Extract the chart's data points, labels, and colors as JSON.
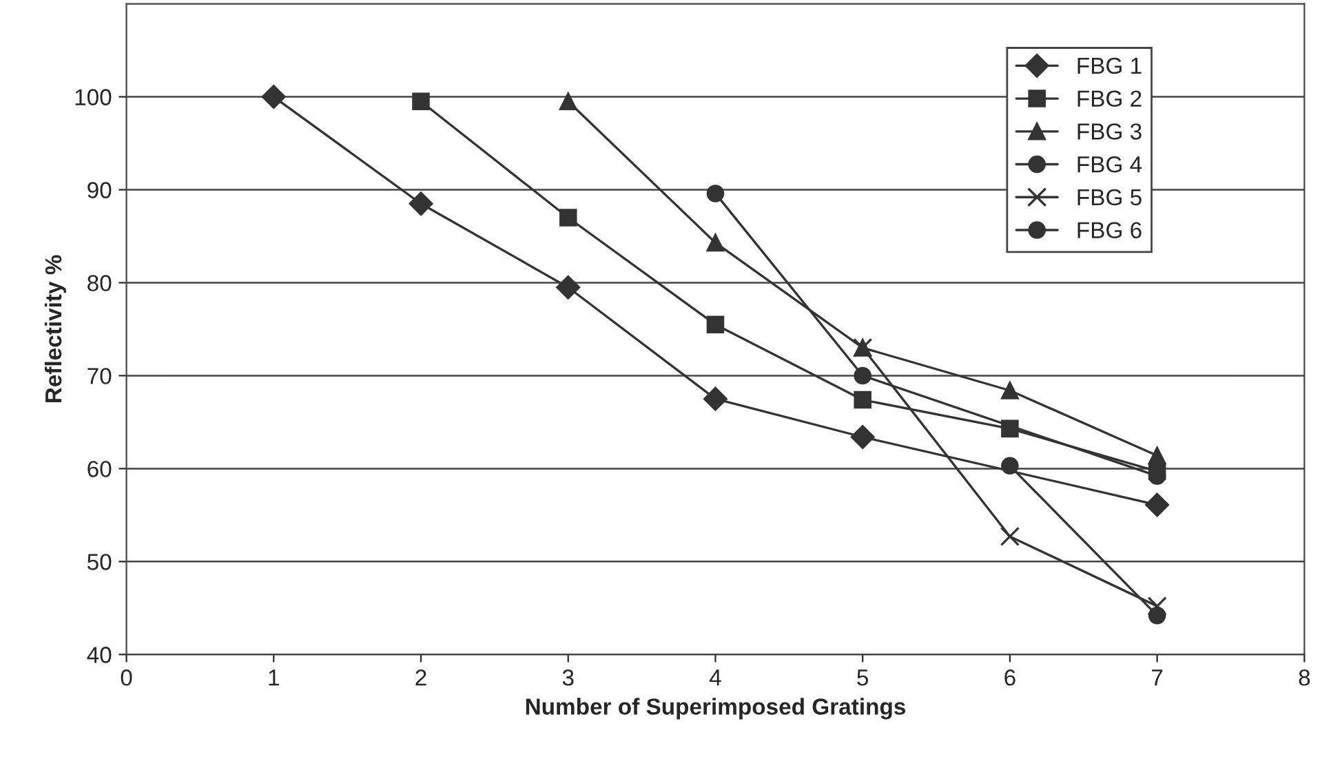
{
  "chart_data": {
    "type": "line",
    "xlabel": "Number of Superimposed Gratings",
    "ylabel": "Reflectivity %",
    "xlim": [
      0,
      8
    ],
    "xticks": [
      0,
      1,
      2,
      3,
      4,
      5,
      6,
      7,
      8
    ],
    "ylim": [
      40,
      110
    ],
    "yticks": [
      40,
      50,
      60,
      70,
      80,
      90,
      100
    ],
    "grid": "y",
    "legend": "top right",
    "line_style": "solid",
    "series": [
      {
        "name": "FBG 1",
        "color": "#333333",
        "marker": "diamond",
        "x": [
          1,
          2,
          3,
          4,
          5,
          7
        ],
        "values": [
          100,
          88.5,
          79.5,
          67.5,
          63.4,
          56.1
        ]
      },
      {
        "name": "FBG 2",
        "color": "#333333",
        "marker": "square",
        "x": [
          2,
          3,
          4,
          5,
          6,
          7
        ],
        "values": [
          99.5,
          87,
          75.5,
          67.4,
          64.3,
          59.7
        ]
      },
      {
        "name": "FBG 3",
        "color": "#333333",
        "marker": "triangle",
        "x": [
          3,
          4,
          5,
          6,
          7
        ],
        "values": [
          99.5,
          84.3,
          73,
          68.4,
          61.4
        ]
      },
      {
        "name": "FBG 4",
        "color": "#333333",
        "marker": "circle",
        "x": [
          4,
          5,
          7
        ],
        "values": [
          89.6,
          70,
          59.2
        ]
      },
      {
        "name": "FBG 5",
        "color": "#333333",
        "marker": "cross",
        "x": [
          5,
          6,
          7
        ],
        "values": [
          73,
          52.7,
          45.2
        ]
      },
      {
        "name": "FBG 6",
        "color": "#333333",
        "marker": "circle",
        "x": [
          6,
          7
        ],
        "values": [
          60.3,
          44.2
        ]
      }
    ]
  }
}
